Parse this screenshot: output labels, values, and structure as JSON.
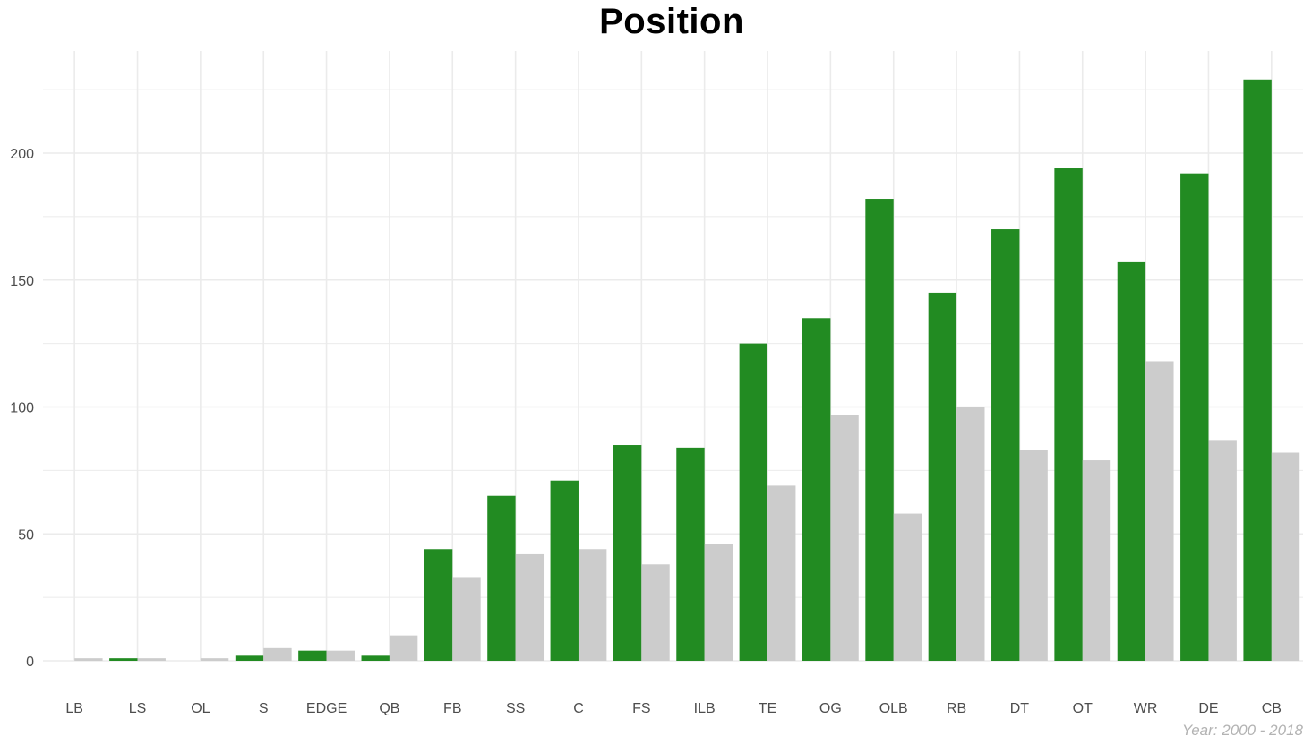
{
  "chart_data": {
    "type": "bar",
    "title": "Position",
    "caption": "Year: 2000 - 2018",
    "categories": [
      "LB",
      "LS",
      "OL",
      "S",
      "EDGE",
      "QB",
      "FB",
      "SS",
      "C",
      "FS",
      "ILB",
      "TE",
      "OG",
      "OLB",
      "RB",
      "DT",
      "OT",
      "WR",
      "DE",
      "CB"
    ],
    "series": [
      {
        "values": [
          0,
          1,
          0,
          2,
          4,
          2,
          44,
          65,
          71,
          85,
          84,
          125,
          135,
          182,
          145,
          170,
          194,
          157,
          192,
          229
        ]
      },
      {
        "values": [
          1,
          1,
          1,
          5,
          4,
          10,
          33,
          42,
          44,
          38,
          46,
          69,
          97,
          58,
          100,
          83,
          79,
          118,
          87,
          82
        ]
      }
    ],
    "ylim": [
      0,
      240
    ],
    "yticks": [
      0,
      50,
      100,
      150,
      200
    ],
    "xlabel": "",
    "ylabel": "",
    "grid": true,
    "legend": "none",
    "colors": {
      "series1": "#228B22",
      "series2": "#CCCCCC",
      "grid": "#EBEBEB",
      "text": "#4D4D4D"
    }
  }
}
